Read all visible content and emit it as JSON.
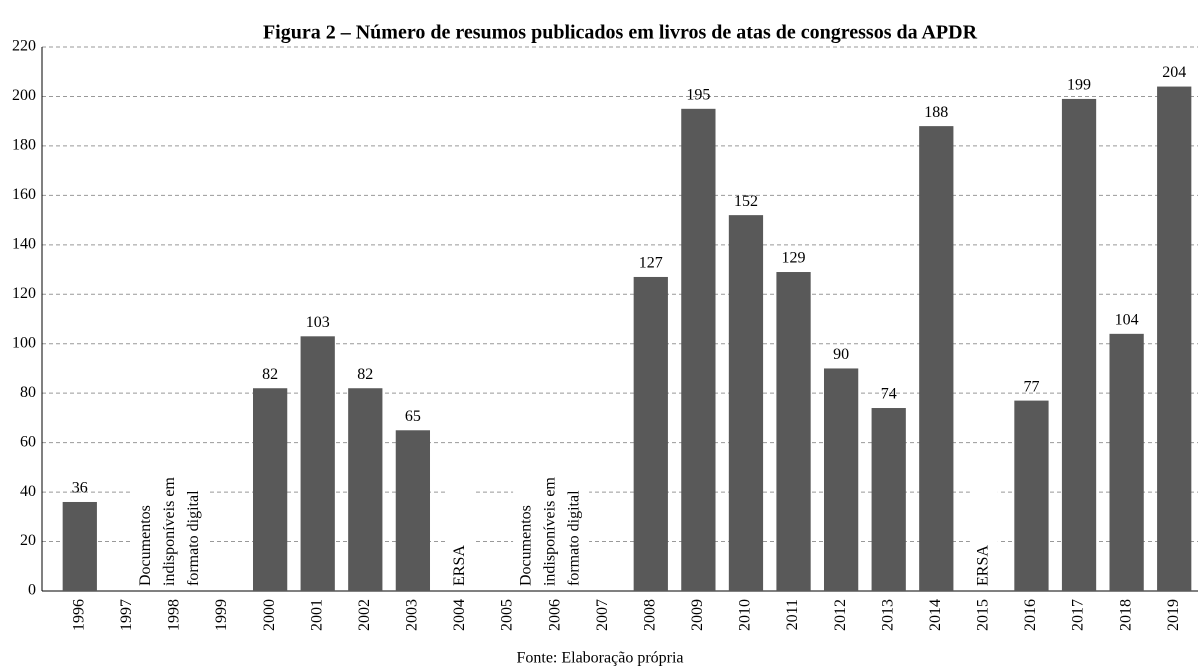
{
  "chart_data": {
    "type": "bar",
    "title": "Figura 2 – Número de resumos publicados em livros de atas de congressos da APDR",
    "categories": [
      "1996",
      "1997",
      "1998",
      "1999",
      "2000",
      "2001",
      "2002",
      "2003",
      "2004",
      "2005",
      "2006",
      "2007",
      "2008",
      "2009",
      "2010",
      "2011",
      "2012",
      "2013",
      "2014",
      "2015",
      "2016",
      "2017",
      "2018",
      "2019"
    ],
    "values": [
      36,
      null,
      null,
      null,
      82,
      103,
      82,
      65,
      null,
      null,
      null,
      null,
      127,
      195,
      152,
      129,
      90,
      74,
      188,
      null,
      77,
      199,
      104,
      204
    ],
    "color": "#595959",
    "ylim": [
      0,
      220
    ],
    "yticks": [
      0,
      20,
      40,
      60,
      80,
      100,
      120,
      140,
      160,
      180,
      200,
      220
    ],
    "grid": true,
    "annotations": [
      [
        "Documentos",
        "indisponíveis em",
        "formato digital"
      ],
      [
        "ERSA"
      ],
      [
        "Documentos",
        "indisponíveis em",
        "formato digital"
      ],
      [
        "ERSA"
      ]
    ],
    "source": "Fonte: Elaboração própria"
  }
}
